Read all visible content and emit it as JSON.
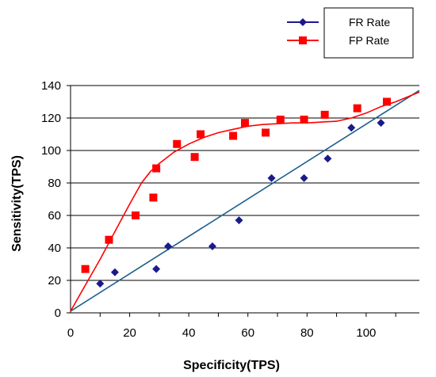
{
  "chart_data": {
    "type": "scatter",
    "xlabel": "Specificity(TPS)",
    "ylabel": "Sensitivity(TPS)",
    "xlim": [
      0,
      118
    ],
    "ylim": [
      0,
      140
    ],
    "x_ticks": [
      "0",
      "20",
      "40",
      "60",
      "80",
      "100"
    ],
    "y_ticks": [
      "0",
      "20",
      "40",
      "60",
      "80",
      "100",
      "120",
      "140"
    ],
    "grid": "horizontal",
    "legend_position": "top-right",
    "series": [
      {
        "name": "FR Rate",
        "marker": "diamond",
        "color": "#1a1a8c",
        "points": [
          [
            10,
            18
          ],
          [
            15,
            25
          ],
          [
            29,
            27
          ],
          [
            33,
            41
          ],
          [
            48,
            41
          ],
          [
            57,
            57
          ],
          [
            68,
            83
          ],
          [
            79,
            83
          ],
          [
            87,
            95
          ],
          [
            95,
            114
          ],
          [
            105,
            117
          ]
        ],
        "trend": "linear",
        "trend_color": "#1f5f8b",
        "trend_line": [
          [
            0,
            1
          ],
          [
            118,
            137
          ]
        ]
      },
      {
        "name": "FP Rate",
        "marker": "square",
        "color": "#ff0000",
        "points": [
          [
            5,
            27
          ],
          [
            13,
            45
          ],
          [
            22,
            60
          ],
          [
            28,
            71
          ],
          [
            29,
            89
          ],
          [
            36,
            104
          ],
          [
            42,
            96
          ],
          [
            44,
            110
          ],
          [
            55,
            109
          ],
          [
            59,
            117
          ],
          [
            66,
            111
          ],
          [
            71,
            119
          ],
          [
            79,
            119
          ],
          [
            86,
            122
          ],
          [
            97,
            126
          ],
          [
            107,
            130
          ]
        ],
        "trend": "polynomial",
        "trend_color": "#ff0000",
        "trend_line": [
          [
            0,
            1
          ],
          [
            5,
            17
          ],
          [
            10,
            33
          ],
          [
            15,
            50
          ],
          [
            20,
            67
          ],
          [
            24,
            80
          ],
          [
            27,
            87
          ],
          [
            30,
            92
          ],
          [
            35,
            99
          ],
          [
            40,
            104
          ],
          [
            45,
            108
          ],
          [
            50,
            111
          ],
          [
            55,
            113
          ],
          [
            60,
            115
          ],
          [
            65,
            116
          ],
          [
            70,
            116.5
          ],
          [
            75,
            117
          ],
          [
            80,
            117
          ],
          [
            85,
            117.5
          ],
          [
            90,
            118
          ],
          [
            95,
            120
          ],
          [
            100,
            123
          ],
          [
            105,
            127
          ],
          [
            110,
            130
          ],
          [
            118,
            136
          ]
        ]
      }
    ]
  }
}
